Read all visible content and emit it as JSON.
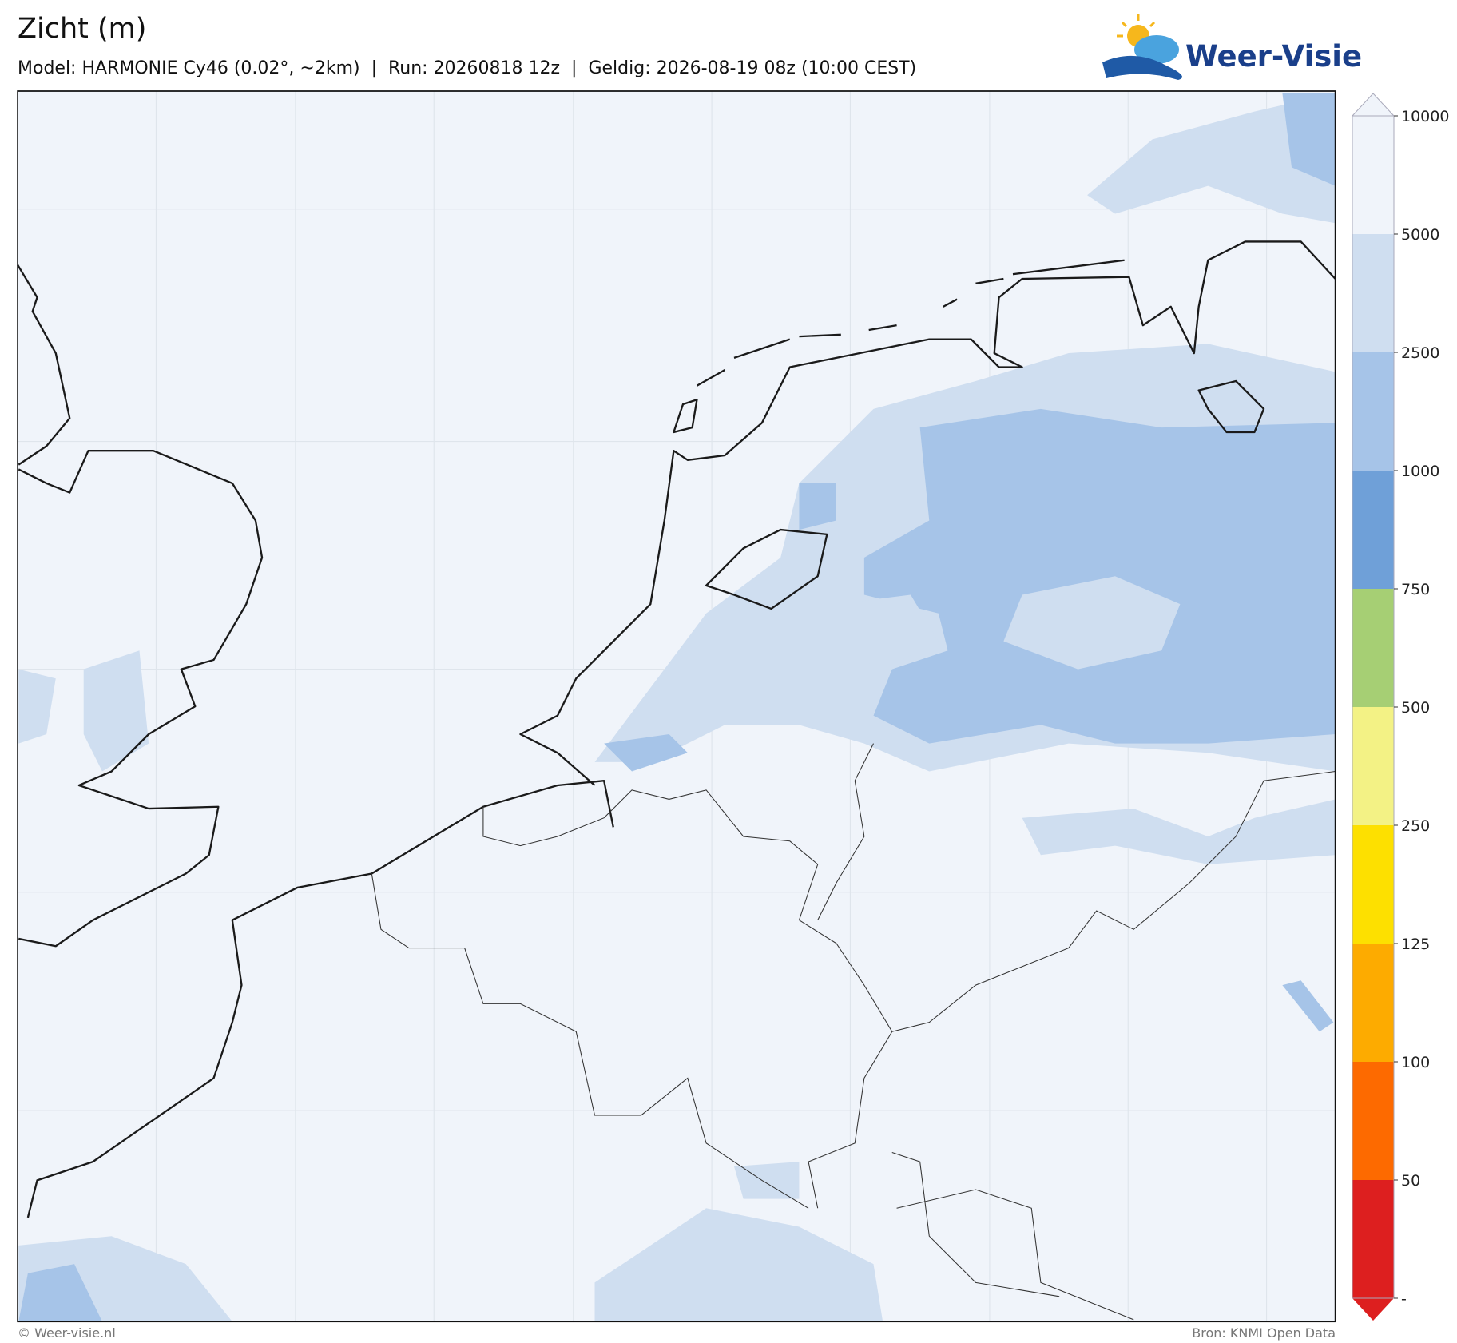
{
  "header": {
    "title": "Zicht (m)",
    "subtitle": "Model: HARMONIE Cy46 (0.02°, ~2km)  |  Run: 20260818 12z  |  Geldig: 2026-08-19 08z (10:00 CEST)"
  },
  "logo": {
    "text": "Weer-Visie"
  },
  "colorbar": {
    "ticks": [
      10000,
      5000,
      2500,
      1000,
      750,
      500,
      250,
      125,
      100,
      50,
      {
        "value": 0,
        "label": "-"
      }
    ],
    "colors": [
      "#f0f4fa",
      "#cfdef0",
      "#a6c4e8",
      "#6fa0d8",
      "#a6cf74",
      "#f3f285",
      "#fde000",
      "#fdab00",
      "#fd6a00",
      "#dd1f1f"
    ]
  },
  "footer": {
    "left": "© Weer-visie.nl",
    "right": "Bron: KNMI Open Data"
  }
}
